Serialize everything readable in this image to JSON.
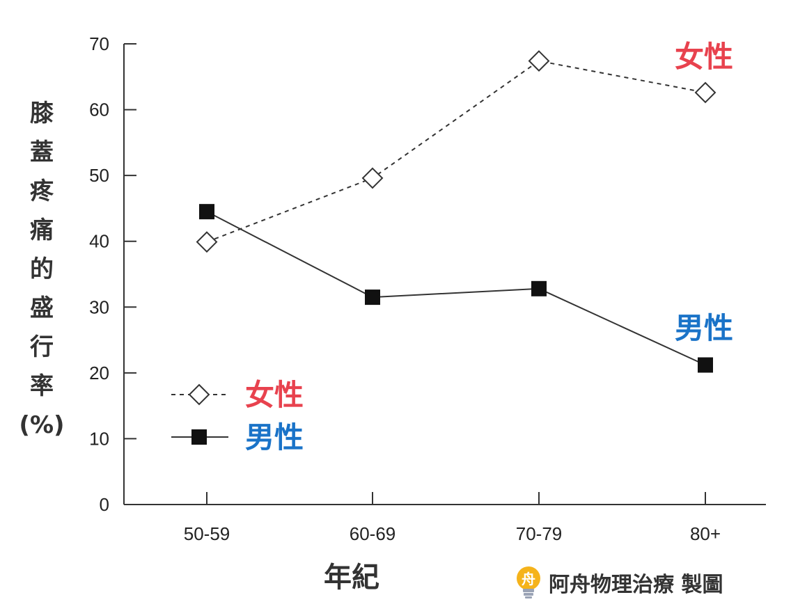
{
  "chart_data": {
    "type": "line",
    "categories": [
      "50-59",
      "60-69",
      "70-79",
      "80+"
    ],
    "series": [
      {
        "name": "女性",
        "values": [
          39.9,
          49.6,
          67.4,
          62.6
        ],
        "color": "#e8424e",
        "line": "dashed",
        "marker": "open-diamond"
      },
      {
        "name": "男性",
        "values": [
          44.5,
          31.5,
          32.8,
          21.2
        ],
        "color": "#1a73c8",
        "line": "solid",
        "marker": "filled-square"
      }
    ],
    "xlabel": "年紀",
    "ylabel": "膝蓋疼痛的盛行率(%)",
    "ylim": [
      0,
      70
    ],
    "yticks": [
      0,
      10,
      20,
      30,
      40,
      50,
      60,
      70
    ],
    "grid": false,
    "legend_position": "bottom-left"
  },
  "ylabel_lines": [
    "膝",
    "蓋",
    "疼",
    "痛",
    "的",
    "盛",
    "行",
    "率",
    "(%)"
  ],
  "credit": {
    "logo_char": "舟",
    "text": "阿舟物理治療 製圖"
  }
}
